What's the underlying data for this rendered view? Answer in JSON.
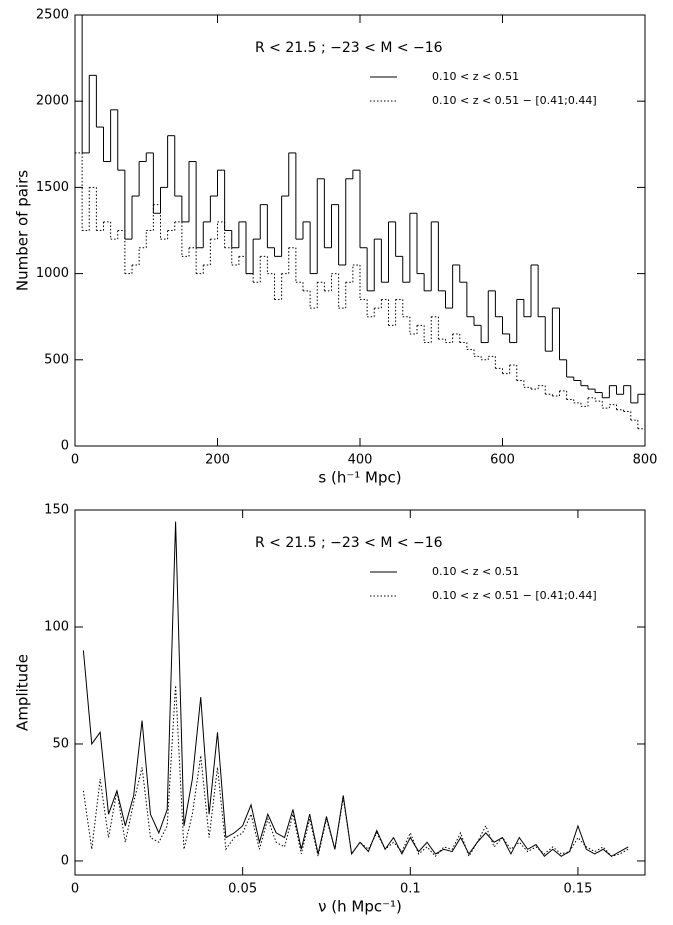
{
  "chart_data": [
    {
      "type": "histogram",
      "annotation": "R < 21.5 ; −23 < M < −16",
      "xlabel": "s (h⁻¹ Mpc)",
      "ylabel": "Number of pairs",
      "xlim": [
        0,
        800
      ],
      "ylim": [
        0,
        2500
      ],
      "xticks": [
        0,
        200,
        400,
        600,
        800
      ],
      "yticks": [
        0,
        500,
        1000,
        1500,
        2000,
        2500
      ],
      "bins": [
        0,
        10,
        20,
        30,
        40,
        50,
        60,
        70,
        80,
        90,
        100,
        110,
        120,
        130,
        140,
        150,
        160,
        170,
        180,
        190,
        200,
        210,
        220,
        230,
        240,
        250,
        260,
        270,
        280,
        290,
        300,
        310,
        320,
        330,
        340,
        350,
        360,
        370,
        380,
        390,
        400,
        410,
        420,
        430,
        440,
        450,
        460,
        470,
        480,
        490,
        500,
        510,
        520,
        530,
        540,
        550,
        560,
        570,
        580,
        590,
        600,
        610,
        620,
        630,
        640,
        650,
        660,
        670,
        680,
        690,
        700,
        710,
        720,
        730,
        740,
        750,
        760,
        770,
        780,
        790,
        800
      ],
      "series": [
        {
          "name": "0.10 < z < 0.51",
          "color": "#000000",
          "dash": "solid",
          "values": [
            2500,
            1700,
            2150,
            1850,
            1650,
            1950,
            1600,
            1200,
            1450,
            1650,
            1700,
            1350,
            1500,
            1800,
            1450,
            1300,
            1650,
            1150,
            1300,
            1450,
            1600,
            1250,
            1150,
            1300,
            1000,
            1200,
            1400,
            1150,
            1100,
            1450,
            1700,
            1200,
            1300,
            1000,
            1550,
            1150,
            1400,
            1050,
            1550,
            1600,
            1150,
            900,
            1200,
            950,
            1300,
            1100,
            950,
            1350,
            1000,
            900,
            1300,
            900,
            800,
            1050,
            950,
            750,
            700,
            600,
            900,
            750,
            650,
            600,
            850,
            750,
            1050,
            750,
            550,
            800,
            500,
            400,
            380,
            350,
            330,
            310,
            280,
            350,
            300,
            350,
            250,
            300
          ]
        },
        {
          "name": "0.10 < z < 0.51   − [0.41;0.44]",
          "color": "#000000",
          "dash": "dotted",
          "values": [
            1700,
            1250,
            1500,
            1250,
            1300,
            1200,
            1250,
            1000,
            1050,
            1150,
            1250,
            1400,
            1200,
            1250,
            1300,
            1100,
            1150,
            1000,
            1050,
            1200,
            1300,
            1150,
            1050,
            1100,
            1000,
            950,
            1100,
            1000,
            850,
            1000,
            1150,
            950,
            900,
            800,
            950,
            900,
            1000,
            800,
            950,
            1050,
            850,
            750,
            800,
            850,
            700,
            850,
            750,
            650,
            700,
            600,
            750,
            620,
            600,
            650,
            600,
            560,
            520,
            500,
            520,
            450,
            420,
            470,
            380,
            340,
            330,
            350,
            300,
            290,
            320,
            270,
            250,
            230,
            280,
            260,
            220,
            240,
            210,
            200,
            150,
            100
          ]
        }
      ]
    },
    {
      "type": "line",
      "annotation": "R < 21.5 ; −23 < M < −16",
      "xlabel": "ν (h Mpc⁻¹)",
      "ylabel": "Amplitude",
      "xlim": [
        0,
        0.17
      ],
      "ylim": [
        -6,
        150
      ],
      "xticks": [
        0,
        0.05,
        0.1,
        0.15
      ],
      "yticks": [
        0,
        50,
        100,
        150
      ],
      "x": [
        0.0025,
        0.005,
        0.0075,
        0.01,
        0.0125,
        0.015,
        0.0175,
        0.02,
        0.0225,
        0.025,
        0.0275,
        0.03,
        0.0325,
        0.035,
        0.0375,
        0.04,
        0.0425,
        0.045,
        0.0475,
        0.05,
        0.0525,
        0.055,
        0.0575,
        0.06,
        0.0625,
        0.065,
        0.0675,
        0.07,
        0.0725,
        0.075,
        0.0775,
        0.08,
        0.0825,
        0.085,
        0.0875,
        0.09,
        0.0925,
        0.095,
        0.0975,
        0.1,
        0.1025,
        0.105,
        0.1075,
        0.11,
        0.1125,
        0.115,
        0.1175,
        0.12,
        0.1225,
        0.125,
        0.1275,
        0.13,
        0.1325,
        0.135,
        0.1375,
        0.14,
        0.1425,
        0.145,
        0.1475,
        0.15,
        0.1525,
        0.155,
        0.1575,
        0.16,
        0.1625,
        0.165
      ],
      "series": [
        {
          "name": "0.10 < z < 0.51",
          "color": "#000000",
          "dash": "solid",
          "values": [
            90,
            50,
            55,
            20,
            30,
            15,
            28,
            60,
            20,
            12,
            22,
            145,
            15,
            35,
            70,
            20,
            55,
            10,
            12,
            15,
            24,
            8,
            20,
            12,
            10,
            22,
            5,
            20,
            3,
            19,
            5,
            28,
            3,
            8,
            4,
            13,
            5,
            10,
            3,
            10,
            4,
            8,
            3,
            5,
            4,
            10,
            3,
            8,
            12,
            8,
            10,
            3,
            10,
            5,
            7,
            2,
            5,
            2,
            4,
            15,
            5,
            3,
            5,
            2,
            4,
            6
          ]
        },
        {
          "name": "0.10 < z < 0.51   − [0.41;0.44]",
          "color": "#000000",
          "dash": "dotted",
          "values": [
            30,
            5,
            35,
            10,
            30,
            8,
            25,
            40,
            10,
            8,
            15,
            75,
            5,
            20,
            45,
            10,
            40,
            5,
            10,
            12,
            20,
            5,
            18,
            8,
            6,
            20,
            3,
            18,
            2,
            18,
            5,
            27,
            3,
            8,
            5,
            12,
            5,
            8,
            4,
            12,
            3,
            6,
            2,
            6,
            5,
            12,
            2,
            8,
            15,
            6,
            10,
            5,
            8,
            4,
            6,
            3,
            6,
            3,
            4,
            10,
            6,
            4,
            6,
            2,
            3,
            5
          ]
        }
      ]
    }
  ]
}
